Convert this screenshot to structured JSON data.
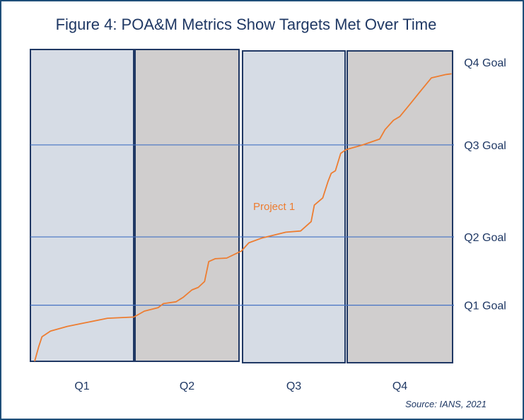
{
  "chart_data": {
    "type": "line",
    "title": "Figure 4: POA&M Metrics Show Targets Met Over Time",
    "categories": [
      "Q1",
      "Q2",
      "Q3",
      "Q4"
    ],
    "xlabel": "",
    "ylabel": "",
    "x_unit": "quarters elapsed",
    "y_scale_basis": "estimated progress, 0 = bottom of plot, 100 = top",
    "xlim": [
      0,
      4
    ],
    "ylim": [
      0,
      100
    ],
    "panel_fills": [
      "#d6dce5",
      "#d0cece",
      "#d6dce5",
      "#d0cece"
    ],
    "goals": [
      {
        "label": "Q1 Goal",
        "value": 18.0,
        "line": true
      },
      {
        "label": "Q2 Goal",
        "value": 39.9,
        "line": true
      },
      {
        "label": "Q3 Goal",
        "value": 69.4,
        "line": true
      },
      {
        "label": "Q4 Goal",
        "value": 95.9,
        "line": false
      }
    ],
    "series": [
      {
        "name": "Project 1",
        "color": "#ed7d31",
        "x": [
          0.04,
          0.08,
          0.11,
          0.19,
          0.35,
          0.51,
          0.73,
          0.98,
          1.08,
          1.21,
          1.26,
          1.38,
          1.45,
          1.53,
          1.59,
          1.65,
          1.69,
          1.75,
          1.86,
          2.0,
          2.07,
          2.19,
          2.42,
          2.56,
          2.66,
          2.69,
          2.77,
          2.82,
          2.85,
          2.89,
          2.94,
          2.99,
          3.15,
          3.31,
          3.36,
          3.44,
          3.5,
          3.6,
          3.69,
          3.8,
          3.94,
          3.99
        ],
        "y": [
          0,
          4.8,
          7.9,
          9.7,
          11.2,
          12.3,
          13.8,
          14.2,
          16.1,
          17.2,
          18.5,
          19.1,
          20.6,
          22.9,
          23.7,
          25.6,
          32.0,
          32.9,
          33.1,
          35.4,
          38.0,
          39.5,
          41.4,
          41.8,
          44.8,
          50.1,
          52.4,
          57.7,
          60.3,
          61.1,
          66.7,
          67.9,
          69.4,
          71.3,
          74.3,
          77.3,
          78.5,
          82.6,
          86.4,
          90.9,
          92.0,
          92.2
        ]
      }
    ],
    "source": "Source: IANS, 2021",
    "goal_line_color": "#4472c4",
    "panel_border_color": "#203864"
  }
}
